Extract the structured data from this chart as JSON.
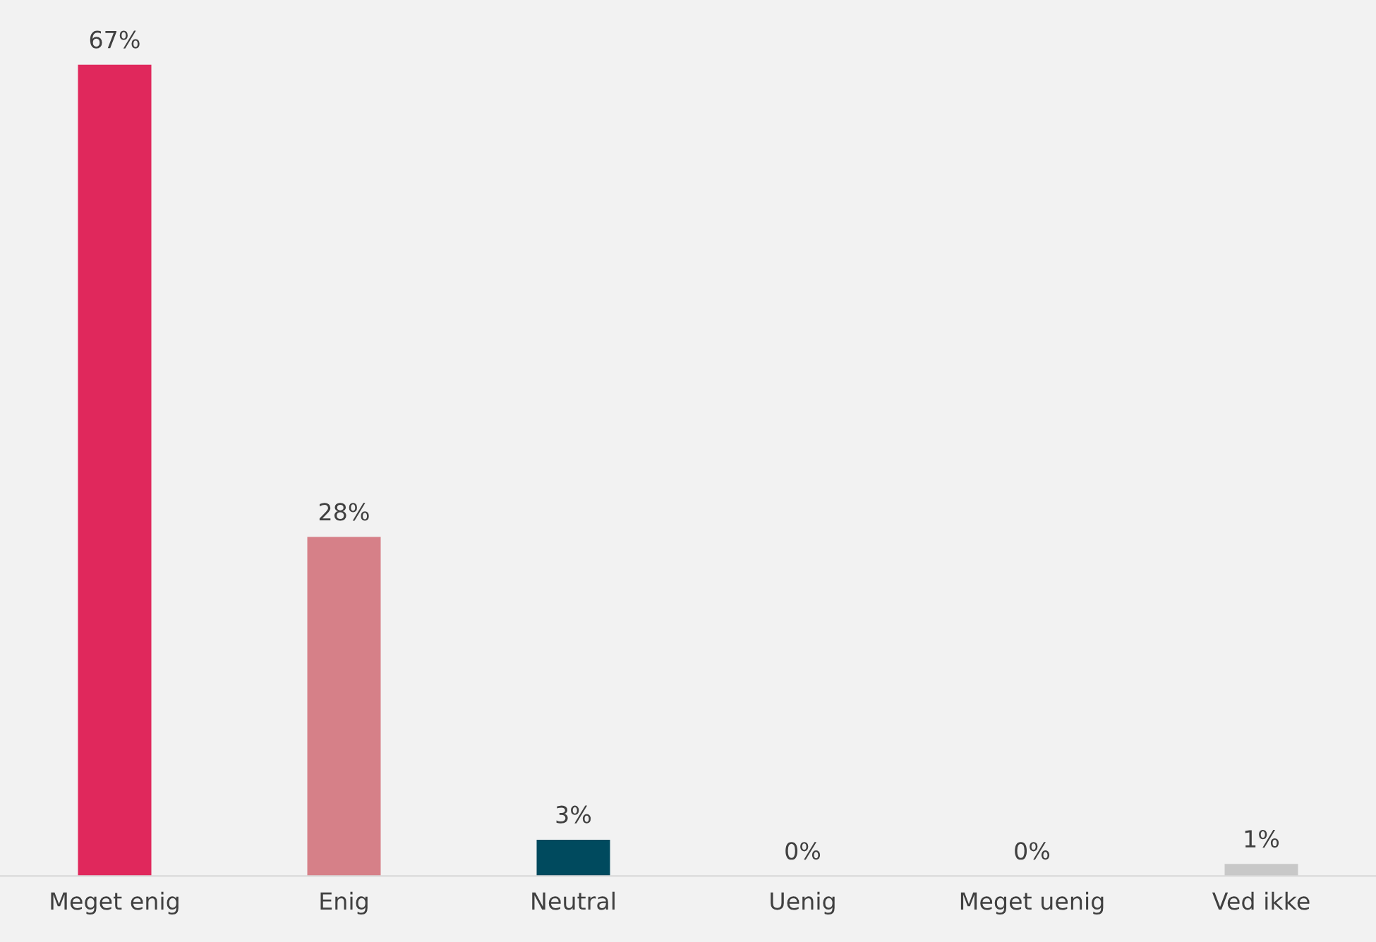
{
  "chart_data": {
    "type": "bar",
    "categories": [
      "Meget enig",
      "Enig",
      "Neutral",
      "Uenig",
      "Meget uenig",
      "Ved ikke"
    ],
    "values": [
      67,
      28,
      3,
      0,
      0,
      1
    ],
    "colors": [
      "#e0285c",
      "#d68088",
      "#004a5e",
      "#a6a6a6",
      "#a6a6a6",
      "#c8c8c8"
    ],
    "value_labels": [
      "67%",
      "28%",
      "3%",
      "0%",
      "0%",
      "1%"
    ],
    "grid": false,
    "legend": false
  }
}
